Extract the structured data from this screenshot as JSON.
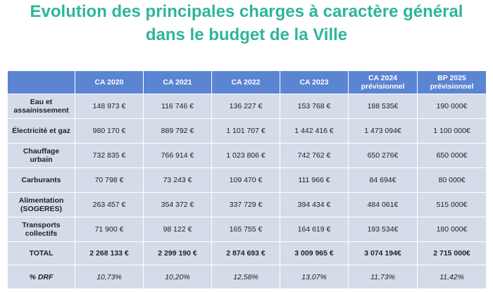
{
  "title": {
    "line1": "Evolution des principales charges à caractère général",
    "line2": "dans le budget de la Ville"
  },
  "table": {
    "headers": [
      "",
      "CA 2020",
      "CA 2021",
      "CA 2022",
      "CA 2023",
      "CA 2024\nprévisionnel",
      "BP 2025\nprévisionnel"
    ],
    "rows": [
      {
        "label": "Eau et\nassainissement",
        "values": [
          "148 973 €",
          "116 746 €",
          "136 227 €",
          "153 768 €",
          "188 535€",
          "190 000€"
        ]
      },
      {
        "label": "Électricité et gaz",
        "values": [
          "980 170 €",
          "889 792 €",
          "1 101 707 €",
          "1 442 416 €",
          "1 473 094€",
          "1 100 000€"
        ]
      },
      {
        "label": "Chauffage\nurbain",
        "values": [
          "732 835 €",
          "766 914 €",
          "1 023 806 €",
          "742 762 €",
          "650 276€",
          "650 000€"
        ]
      },
      {
        "label": "Carburants",
        "values": [
          "70 798 €",
          "73 243 €",
          "109 470 €",
          "111 966 €",
          "84 694€",
          "80 000€"
        ]
      },
      {
        "label": "Alimentation\n(SOGERES)",
        "values": [
          "263 457 €",
          "354 372 €",
          "337 729 €",
          "394 434 €",
          "484 061€",
          "515 000€"
        ]
      },
      {
        "label": "Transports\ncollectifs",
        "values": [
          "71 900 €",
          "98 122 €",
          "165 755 €",
          "164 619 €",
          "193 534€",
          "180 000€"
        ]
      }
    ],
    "total": {
      "label": "TOTAL",
      "values": [
        "2 268 133 €",
        "2 299 190 €",
        "2 874 693 €",
        "3 009 965 €",
        "3 074 194€",
        "2 715 000€"
      ]
    },
    "drf": {
      "label": "% DRF",
      "values": [
        "10,73%",
        "10,20%",
        "12,58%",
        "13,07%",
        "11,73%",
        "11,42%"
      ]
    }
  },
  "colors": {
    "title": "#2fb59a",
    "header_bg": "#5b84d3",
    "cell_bg": "#d4dcea"
  }
}
